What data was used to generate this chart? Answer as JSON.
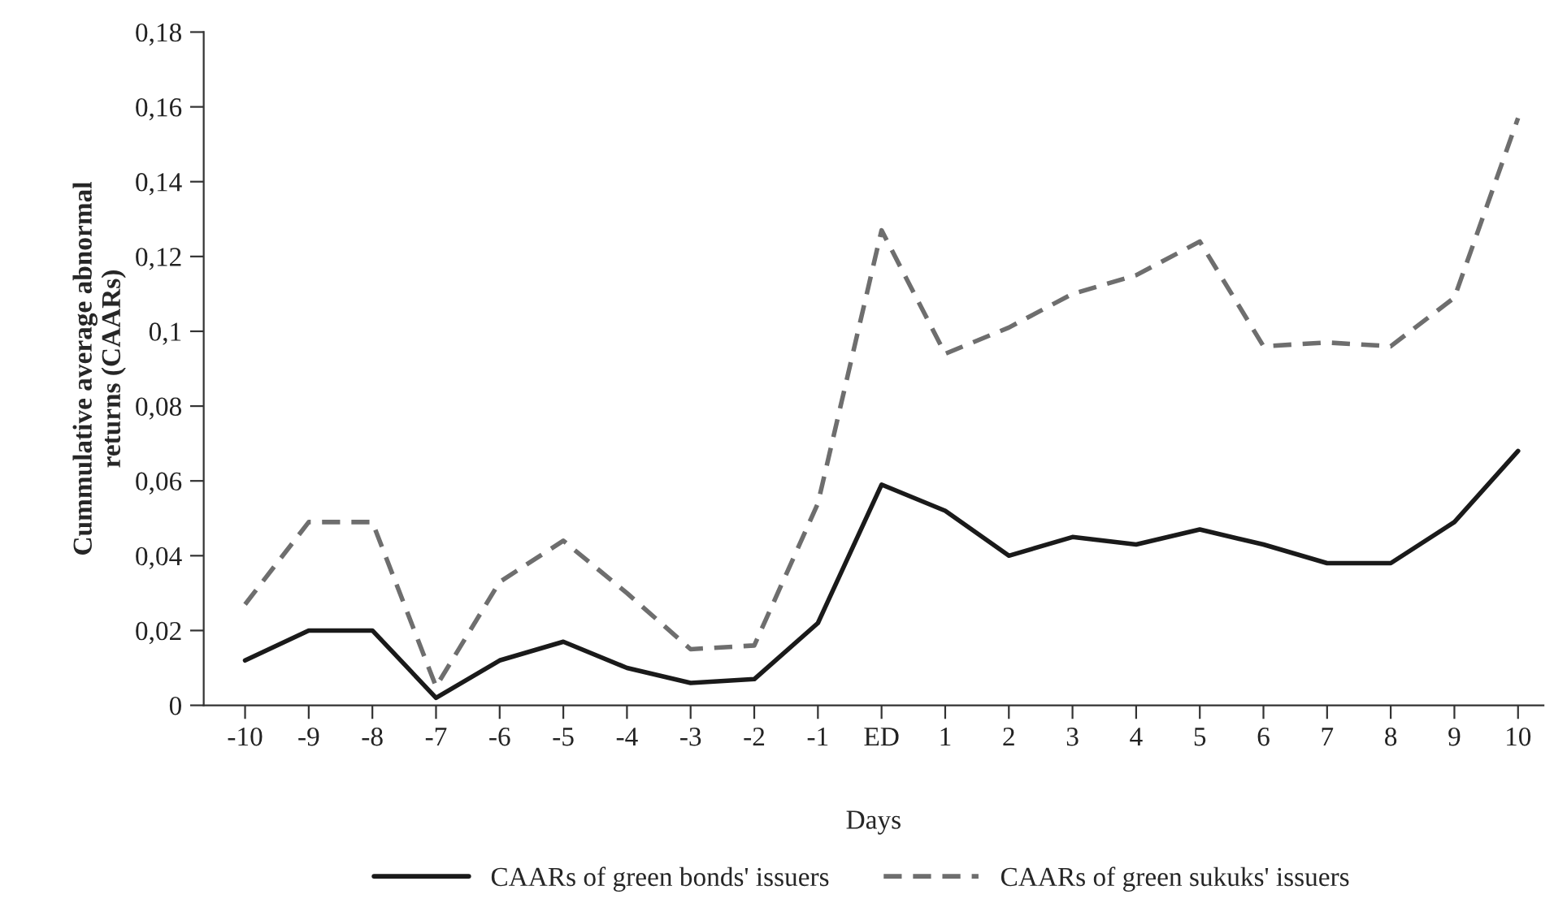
{
  "chart_data": {
    "type": "line",
    "xlabel": "Days",
    "ylabel": "Cummulative average abnormal\nreturns (CAARs)",
    "categories": [
      "-10",
      "-9",
      "-8",
      "-7",
      "-6",
      "-5",
      "-4",
      "-3",
      "-2",
      "-1",
      "ED",
      "1",
      "2",
      "3",
      "4",
      "5",
      "6",
      "7",
      "8",
      "9",
      "10"
    ],
    "series": [
      {
        "name": "CAARs of green bonds' issuers",
        "color": "#1a1a1a",
        "line_style": "solid",
        "values": [
          0.012,
          0.02,
          0.02,
          0.002,
          0.012,
          0.017,
          0.01,
          0.006,
          0.007,
          0.022,
          0.059,
          0.052,
          0.04,
          0.045,
          0.043,
          0.047,
          0.043,
          0.038,
          0.038,
          0.049,
          0.068
        ]
      },
      {
        "name": "CAARs of green sukuks' issuers",
        "color": "#6e6e6e",
        "line_style": "dashed",
        "values": [
          0.027,
          0.049,
          0.049,
          0.005,
          0.033,
          0.044,
          0.03,
          0.015,
          0.016,
          0.054,
          0.127,
          0.094,
          0.101,
          0.11,
          0.115,
          0.124,
          0.096,
          0.097,
          0.096,
          0.109,
          0.157
        ]
      }
    ],
    "ylim": [
      0,
      0.18
    ],
    "yticks": [
      {
        "value": 0,
        "label": "0"
      },
      {
        "value": 0.02,
        "label": "0,02"
      },
      {
        "value": 0.04,
        "label": "0,04"
      },
      {
        "value": 0.06,
        "label": "0,06"
      },
      {
        "value": 0.08,
        "label": "0,08"
      },
      {
        "value": 0.1,
        "label": "0,1"
      },
      {
        "value": 0.12,
        "label": "0,12"
      },
      {
        "value": 0.14,
        "label": "0,14"
      },
      {
        "value": 0.16,
        "label": "0,16"
      },
      {
        "value": 0.18,
        "label": "0,18"
      }
    ],
    "grid": false,
    "legend": "bottom",
    "marker": "none"
  }
}
